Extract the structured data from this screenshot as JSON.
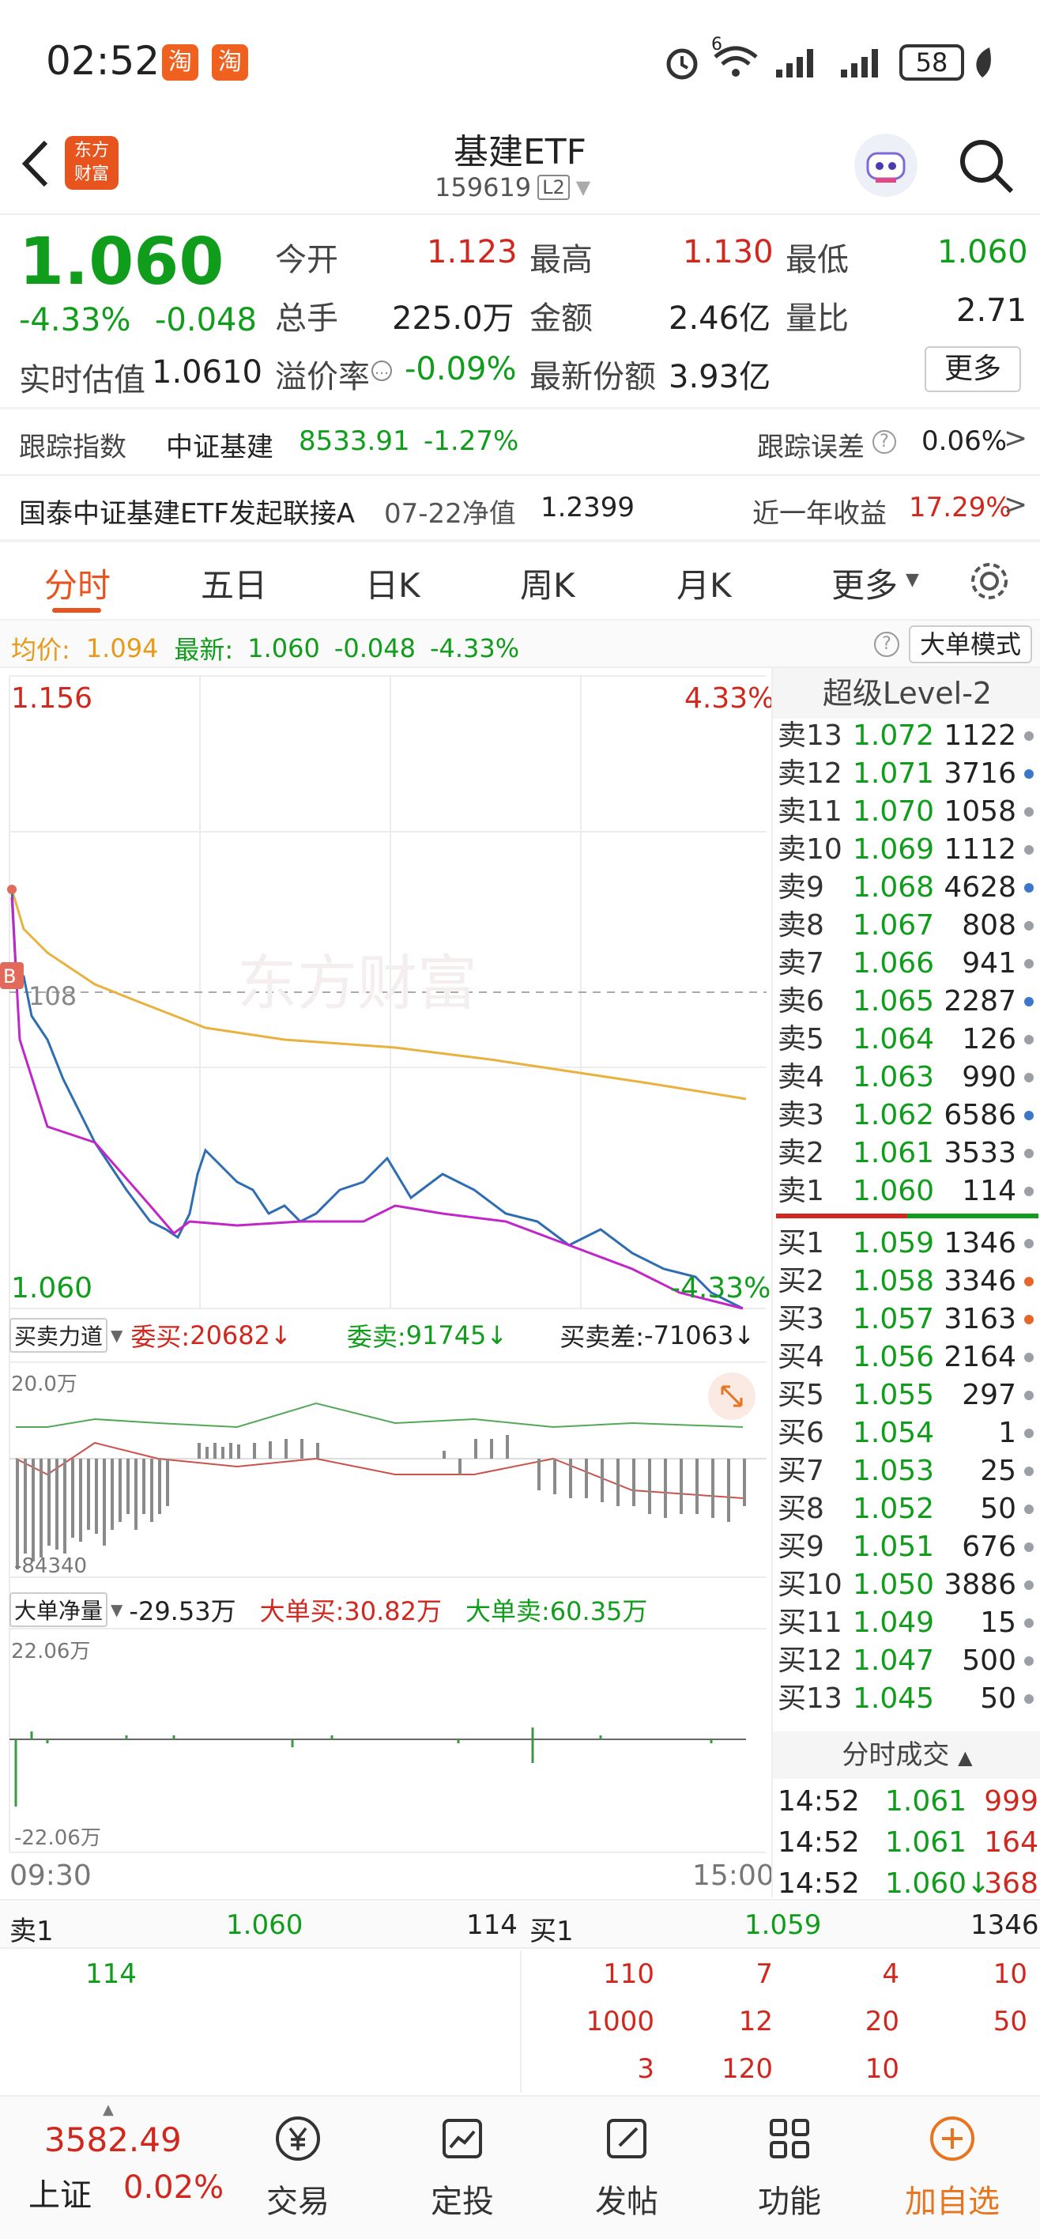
{
  "status_bar": {
    "time": "02:52",
    "battery": "58",
    "signal_badge": "6",
    "app_badge_1": "淘",
    "app_badge_2": "淘"
  },
  "header": {
    "title": "基建ETF",
    "code": "159619",
    "code_badge": "L2",
    "logo_line1": "东方",
    "logo_line2": "财富"
  },
  "quote": {
    "price": "1.060",
    "change_pct": "-4.33%",
    "change": "-0.048",
    "est_label": "实时估值",
    "est_value": "1.0610",
    "open_label": "今开",
    "open": "1.123",
    "high_label": "最高",
    "high": "1.130",
    "low_label": "最低",
    "low": "1.060",
    "vol_label": "总手",
    "vol": "225.0万",
    "amount_label": "金额",
    "amount": "2.46亿",
    "ratio_label": "量比",
    "ratio": "2.71",
    "premium_label": "溢价率",
    "premium": "-0.09%",
    "shares_label": "最新份额",
    "shares": "3.93亿",
    "more": "更多"
  },
  "index": {
    "label": "跟踪指数",
    "name": "中证基建",
    "value": "8533.91",
    "change": "-1.27%",
    "err_label": "跟踪误差",
    "err_value": "0.06%"
  },
  "link_fund": {
    "name": "国泰中证基建ETF发起联接A",
    "nav_date": "07-22净值",
    "nav": "1.2399",
    "yield_label": "近一年收益",
    "yield": "17.29%"
  },
  "tabs": [
    "分时",
    "五日",
    "日K",
    "周K",
    "月K",
    "更多"
  ],
  "chart_info": {
    "avg_label": "均价:",
    "avg": "1.094",
    "latest_label": "最新:",
    "latest": "1.060",
    "chg": "-0.048",
    "pct": "-4.33%",
    "mode_button": "大单模式"
  },
  "main_chart": {
    "top_price": "1.156",
    "top_pct": "4.33%",
    "bottom_price": "1.060",
    "bottom_pct": "-4.33%",
    "mid_label": "108",
    "b_marker": "B",
    "watermark": "东方财富"
  },
  "force": {
    "select": "买卖力道",
    "buy_label": "委买:",
    "buy": "20682",
    "sell_label": "委卖:",
    "sell": "91745",
    "diff_label": "买卖差:",
    "diff": "-71063",
    "top": "20.0万",
    "bottom": "-84340"
  },
  "bigorder": {
    "select": "大单净量",
    "net": "-29.53万",
    "buy_label": "大单买:",
    "buy": "30.82万",
    "sell_label": "大单卖:",
    "sell": "60.35万",
    "top": "22.06万",
    "bottom": "-22.06万"
  },
  "time_axis": {
    "start": "09:30",
    "end": "15:00"
  },
  "level2_title": "超级Level-2",
  "order_book": {
    "sell": [
      {
        "l": "卖13",
        "p": "1.072",
        "v": "1122",
        "c": "#9aa0a6"
      },
      {
        "l": "卖12",
        "p": "1.071",
        "v": "3716",
        "c": "#3d78c8"
      },
      {
        "l": "卖11",
        "p": "1.070",
        "v": "1058",
        "c": "#9aa0a6"
      },
      {
        "l": "卖10",
        "p": "1.069",
        "v": "1112",
        "c": "#9aa0a6"
      },
      {
        "l": "卖9",
        "p": "1.068",
        "v": "4628",
        "c": "#3d78c8"
      },
      {
        "l": "卖8",
        "p": "1.067",
        "v": "808",
        "c": "#9aa0a6"
      },
      {
        "l": "卖7",
        "p": "1.066",
        "v": "941",
        "c": "#9aa0a6"
      },
      {
        "l": "卖6",
        "p": "1.065",
        "v": "2287",
        "c": "#3d78c8"
      },
      {
        "l": "卖5",
        "p": "1.064",
        "v": "126",
        "c": "#9aa0a6"
      },
      {
        "l": "卖4",
        "p": "1.063",
        "v": "990",
        "c": "#9aa0a6"
      },
      {
        "l": "卖3",
        "p": "1.062",
        "v": "6586",
        "c": "#3d78c8"
      },
      {
        "l": "卖2",
        "p": "1.061",
        "v": "3533",
        "c": "#9aa0a6"
      },
      {
        "l": "卖1",
        "p": "1.060",
        "v": "114",
        "c": "#9aa0a6"
      }
    ],
    "buy": [
      {
        "l": "买1",
        "p": "1.059",
        "v": "1346",
        "c": "#9aa0a6"
      },
      {
        "l": "买2",
        "p": "1.058",
        "v": "3346",
        "c": "#e5682a"
      },
      {
        "l": "买3",
        "p": "1.057",
        "v": "3163",
        "c": "#e5682a"
      },
      {
        "l": "买4",
        "p": "1.056",
        "v": "2164",
        "c": "#9aa0a6"
      },
      {
        "l": "买5",
        "p": "1.055",
        "v": "297",
        "c": "#9aa0a6"
      },
      {
        "l": "买6",
        "p": "1.054",
        "v": "1",
        "c": "#9aa0a6"
      },
      {
        "l": "买7",
        "p": "1.053",
        "v": "25",
        "c": "#9aa0a6"
      },
      {
        "l": "买8",
        "p": "1.052",
        "v": "50",
        "c": "#9aa0a6"
      },
      {
        "l": "买9",
        "p": "1.051",
        "v": "676",
        "c": "#9aa0a6"
      },
      {
        "l": "买10",
        "p": "1.050",
        "v": "3886",
        "c": "#9aa0a6"
      },
      {
        "l": "买11",
        "p": "1.049",
        "v": "15",
        "c": "#9aa0a6"
      },
      {
        "l": "买12",
        "p": "1.047",
        "v": "500",
        "c": "#9aa0a6"
      },
      {
        "l": "买13",
        "p": "1.045",
        "v": "50",
        "c": "#9aa0a6"
      }
    ]
  },
  "trades_title": "分时成交",
  "trades": [
    {
      "t": "14:52",
      "p": "1.061",
      "v": "999"
    },
    {
      "t": "14:52",
      "p": "1.061",
      "v": "164"
    },
    {
      "t": "14:52",
      "p": "1.060↓",
      "v": "368"
    }
  ],
  "queue": {
    "sell_label": "卖1",
    "sell_price": "1.060",
    "sell_qty": "114",
    "sell_items": [
      "114"
    ],
    "buy_label": "买1",
    "buy_price": "1.059",
    "buy_qty": "1346",
    "buy_items": [
      "110",
      "7",
      "4",
      "10",
      "1000",
      "12",
      "20",
      "50",
      "3",
      "120",
      "10"
    ]
  },
  "bottom_nav": {
    "index_value": "3582.49",
    "index_name": "上证",
    "index_pct": "0.02%",
    "items": [
      "交易",
      "定投",
      "发帖",
      "功能",
      "加自选"
    ]
  },
  "colors": {
    "red": "#d0281e",
    "green": "#109d1c",
    "accent": "#e8741e"
  }
}
